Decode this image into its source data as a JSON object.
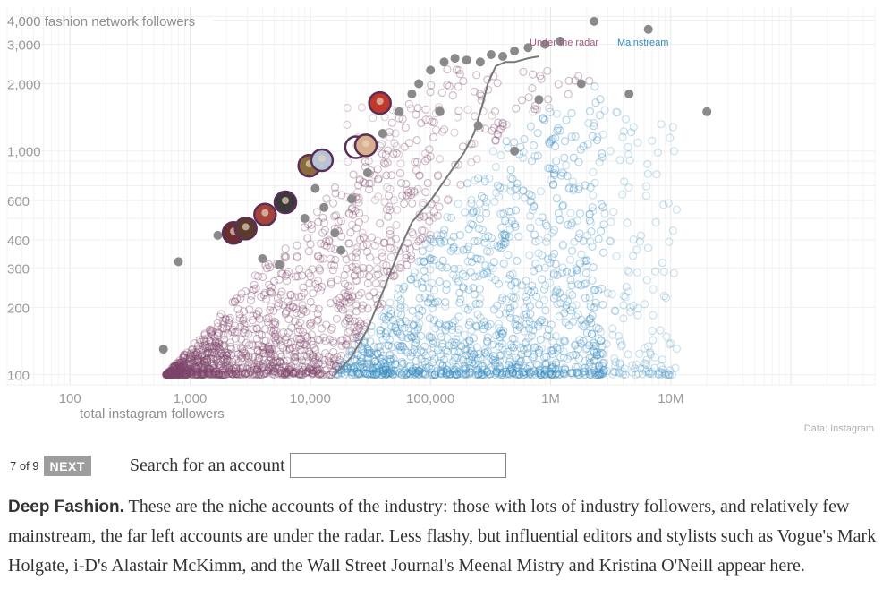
{
  "chart_data": {
    "type": "scatter",
    "x_scale": "log",
    "y_scale": "log",
    "xlabel": "total instagram followers",
    "ylabel": "4,000 fashion network followers",
    "xlim": [
      30,
      500000000
    ],
    "ylim": [
      90,
      4400
    ],
    "x_ticks": [
      {
        "value": 100,
        "label": "100"
      },
      {
        "value": 1000,
        "label": "1,000"
      },
      {
        "value": 10000,
        "label": "10,000"
      },
      {
        "value": 100000,
        "label": "100,000"
      },
      {
        "value": 1000000,
        "label": "1M"
      },
      {
        "value": 10000000,
        "label": "10M"
      }
    ],
    "y_ticks": [
      {
        "value": 100,
        "label": "100"
      },
      {
        "value": 200,
        "label": "200"
      },
      {
        "value": 300,
        "label": "300"
      },
      {
        "value": 400,
        "label": "400"
      },
      {
        "value": 600,
        "label": "600"
      },
      {
        "value": 1000,
        "label": "1,000"
      },
      {
        "value": 2000,
        "label": "2,000"
      },
      {
        "value": 3000,
        "label": "3,000"
      }
    ],
    "legend": [
      {
        "label": "Under the radar",
        "color": "#a5557f"
      },
      {
        "label": "Mainstream",
        "color": "#2f8bc0"
      }
    ],
    "source_note": "Data: Instagram",
    "grid": true,
    "colors": {
      "under_the_radar": "#7d4669",
      "mainstream": "#2f86bd",
      "notable": "#8a8a8a",
      "divider": "#777777",
      "highlight_ring": "#5b2e58"
    },
    "divider_line": [
      [
        16000,
        100
      ],
      [
        22000,
        120
      ],
      [
        30000,
        160
      ],
      [
        42000,
        250
      ],
      [
        55000,
        360
      ],
      [
        70000,
        480
      ],
      [
        100000,
        600
      ],
      [
        150000,
        820
      ],
      [
        190000,
        980
      ],
      [
        230000,
        1200
      ],
      [
        270000,
        1600
      ],
      [
        300000,
        2000
      ],
      [
        350000,
        2400
      ],
      [
        420000,
        2500
      ],
      [
        500000,
        2500
      ],
      [
        650000,
        2600
      ],
      [
        800000,
        2650
      ]
    ],
    "notable_accounts": [
      [
        600,
        130
      ],
      [
        800,
        320
      ],
      [
        1700,
        420
      ],
      [
        2500,
        440
      ],
      [
        4000,
        330
      ],
      [
        5500,
        310
      ],
      [
        7000,
        580
      ],
      [
        9000,
        500
      ],
      [
        11000,
        680
      ],
      [
        13000,
        560
      ],
      [
        16000,
        430
      ],
      [
        18000,
        360
      ],
      [
        22000,
        610
      ],
      [
        30000,
        800
      ],
      [
        40000,
        1200
      ],
      [
        55000,
        1500
      ],
      [
        70000,
        1800
      ],
      [
        80000,
        2000
      ],
      [
        100000,
        2300
      ],
      [
        130000,
        2500
      ],
      [
        160000,
        2600
      ],
      [
        200000,
        2550
      ],
      [
        260000,
        2500
      ],
      [
        320000,
        2700
      ],
      [
        400000,
        2650
      ],
      [
        500000,
        2800
      ],
      [
        650000,
        2900
      ],
      [
        900000,
        3000
      ],
      [
        1200000,
        3100
      ],
      [
        2300000,
        3800
      ],
      [
        6500000,
        3500
      ],
      [
        1800000,
        2000
      ],
      [
        4500000,
        1800
      ],
      [
        20000000,
        1500
      ],
      [
        250000,
        1300
      ],
      [
        500000,
        1000
      ],
      [
        120000,
        1500
      ],
      [
        800000,
        1700
      ]
    ],
    "highlighted_accounts": [
      [
        2300,
        430
      ],
      [
        2900,
        450
      ],
      [
        4200,
        520
      ],
      [
        6200,
        590
      ],
      [
        9800,
        860
      ],
      [
        12500,
        910
      ],
      [
        24000,
        1040
      ],
      [
        29000,
        1060
      ],
      [
        38000,
        1640
      ]
    ]
  },
  "controls": {
    "pager_text": "7 of 9",
    "next_label": "NEXT",
    "search_label": "Search for an account",
    "search_value": "",
    "search_placeholder": ""
  },
  "description": {
    "title": "Deep Fashion.",
    "body": "These are the niche accounts of the industry: those with lots of industry followers, and relatively few mainstream, the far left accounts are under the radar. Less flashy, but influential editors and stylists such as Vogue's Mark Holgate, i-D's Alastair McKimm, and the Wall Street Journal's Meenal Mistry and Kristina O'Neill appear here."
  }
}
